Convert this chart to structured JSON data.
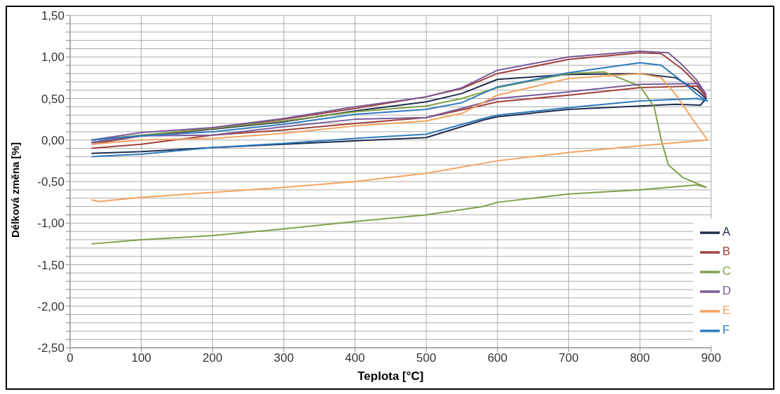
{
  "chart_data": {
    "type": "line",
    "xlabel": "Teplota [°C]",
    "ylabel": "Délková změna [%]",
    "xlim": [
      0,
      900
    ],
    "xticks": [
      0,
      100,
      200,
      300,
      400,
      500,
      600,
      700,
      800,
      900
    ],
    "ylim": [
      -2.5,
      1.5
    ],
    "yticks": [
      {
        "value": -2.5,
        "label": "-2,50"
      },
      {
        "value": -2.4,
        "label": null
      },
      {
        "value": -2.3,
        "label": null
      },
      {
        "value": -2.2,
        "label": null
      },
      {
        "value": -2.1,
        "label": null
      },
      {
        "value": -2,
        "label": "-2,00"
      },
      {
        "value": -1.9,
        "label": null
      },
      {
        "value": -1.8,
        "label": null
      },
      {
        "value": -1.7,
        "label": null
      },
      {
        "value": -1.6,
        "label": null
      },
      {
        "value": -1.5,
        "label": "-1,50"
      },
      {
        "value": -1.4,
        "label": null
      },
      {
        "value": -1.3,
        "label": null
      },
      {
        "value": -1.2,
        "label": null
      },
      {
        "value": -1.1,
        "label": null
      },
      {
        "value": -1,
        "label": "-1,00"
      },
      {
        "value": -0.9,
        "label": null
      },
      {
        "value": -0.8,
        "label": null
      },
      {
        "value": -0.7,
        "label": null
      },
      {
        "value": -0.6,
        "label": null
      },
      {
        "value": -0.5,
        "label": "-0,50"
      },
      {
        "value": -0.4,
        "label": null
      },
      {
        "value": -0.3,
        "label": null
      },
      {
        "value": -0.2,
        "label": null
      },
      {
        "value": -0.1,
        "label": null
      },
      {
        "value": 0,
        "label": "0,00"
      },
      {
        "value": 0.1,
        "label": null
      },
      {
        "value": 0.2,
        "label": null
      },
      {
        "value": 0.3,
        "label": null
      },
      {
        "value": 0.4,
        "label": null
      },
      {
        "value": 0.5,
        "label": "0,50"
      },
      {
        "value": 0.6,
        "label": null
      },
      {
        "value": 0.7,
        "label": null
      },
      {
        "value": 0.8,
        "label": null
      },
      {
        "value": 0.9,
        "label": null
      },
      {
        "value": 1,
        "label": "1,00"
      },
      {
        "value": 1.1,
        "label": null
      },
      {
        "value": 1.2,
        "label": null
      },
      {
        "value": 1.3,
        "label": null
      },
      {
        "value": 1.4,
        "label": null
      },
      {
        "value": 1.5,
        "label": "1,50"
      }
    ],
    "grid": true,
    "legend": "bottom right",
    "series": [
      {
        "name": "A",
        "color": "#1f2d4e",
        "x": [
          30,
          100,
          200,
          300,
          400,
          500,
          550,
          600,
          700,
          800,
          850,
          880,
          893,
          885,
          850,
          800,
          700,
          600,
          580,
          500,
          400,
          300,
          200,
          100,
          30
        ],
        "values": [
          -0.03,
          0.05,
          0.13,
          0.22,
          0.35,
          0.46,
          0.56,
          0.73,
          0.79,
          0.8,
          0.75,
          0.6,
          0.5,
          0.42,
          0.43,
          0.41,
          0.37,
          0.28,
          0.24,
          0.03,
          -0.01,
          -0.05,
          -0.09,
          -0.14,
          -0.16
        ]
      },
      {
        "name": "B",
        "color": "#a0403c",
        "x": [
          30,
          100,
          200,
          300,
          400,
          500,
          550,
          600,
          700,
          800,
          830,
          860,
          880,
          893,
          880,
          800,
          700,
          600,
          580,
          500,
          400,
          300,
          200,
          100,
          30
        ],
        "values": [
          -0.05,
          0.05,
          0.14,
          0.25,
          0.38,
          0.52,
          0.62,
          0.8,
          0.97,
          1.05,
          1.04,
          0.85,
          0.68,
          0.52,
          0.65,
          0.63,
          0.54,
          0.46,
          0.42,
          0.27,
          0.2,
          0.12,
          0.06,
          -0.05,
          -0.1
        ]
      },
      {
        "name": "C",
        "color": "#7fa04a",
        "x": [
          30,
          100,
          200,
          300,
          400,
          500,
          550,
          600,
          700,
          750,
          800,
          820,
          830,
          840,
          860,
          893,
          880,
          800,
          700,
          600,
          580,
          500,
          400,
          300,
          200,
          100,
          30
        ],
        "values": [
          0.0,
          0.06,
          0.14,
          0.23,
          0.34,
          0.41,
          0.5,
          0.63,
          0.8,
          0.82,
          0.65,
          0.4,
          0.0,
          -0.3,
          -0.45,
          -0.57,
          -0.54,
          -0.6,
          -0.65,
          -0.75,
          -0.8,
          -0.9,
          -0.98,
          -1.07,
          -1.15,
          -1.2,
          -1.25
        ]
      },
      {
        "name": "D",
        "color": "#7a5a9a",
        "x": [
          30,
          100,
          200,
          300,
          400,
          500,
          550,
          600,
          700,
          800,
          840,
          860,
          880,
          893,
          880,
          800,
          700,
          600,
          580,
          500,
          400,
          300,
          200,
          100,
          30
        ],
        "values": [
          0.0,
          0.09,
          0.15,
          0.26,
          0.4,
          0.52,
          0.63,
          0.84,
          1.0,
          1.07,
          1.05,
          0.9,
          0.72,
          0.55,
          0.68,
          0.67,
          0.58,
          0.5,
          0.45,
          0.27,
          0.25,
          0.16,
          0.06,
          0.05,
          -0.03
        ]
      },
      {
        "name": "E",
        "color": "#f4a460",
        "x": [
          30,
          100,
          200,
          300,
          400,
          500,
          550,
          600,
          700,
          800,
          830,
          850,
          870,
          895,
          800,
          700,
          600,
          500,
          400,
          300,
          200,
          100,
          40,
          30
        ],
        "values": [
          -0.05,
          0.0,
          0.02,
          0.08,
          0.17,
          0.23,
          0.32,
          0.54,
          0.74,
          0.8,
          0.75,
          0.55,
          0.3,
          0.0,
          -0.07,
          -0.15,
          -0.25,
          -0.4,
          -0.5,
          -0.57,
          -0.63,
          -0.69,
          -0.74,
          -0.72
        ]
      },
      {
        "name": "F",
        "color": "#2e7bbf",
        "x": [
          30,
          100,
          200,
          300,
          400,
          500,
          550,
          600,
          700,
          800,
          830,
          860,
          880,
          895,
          880,
          800,
          700,
          600,
          580,
          500,
          400,
          300,
          200,
          100,
          50,
          30
        ],
        "values": [
          0.0,
          0.05,
          0.1,
          0.19,
          0.31,
          0.37,
          0.45,
          0.64,
          0.81,
          0.93,
          0.9,
          0.7,
          0.55,
          0.47,
          0.5,
          0.47,
          0.39,
          0.3,
          0.26,
          0.07,
          0.02,
          -0.04,
          -0.09,
          -0.17,
          -0.19,
          -0.2
        ]
      }
    ]
  }
}
